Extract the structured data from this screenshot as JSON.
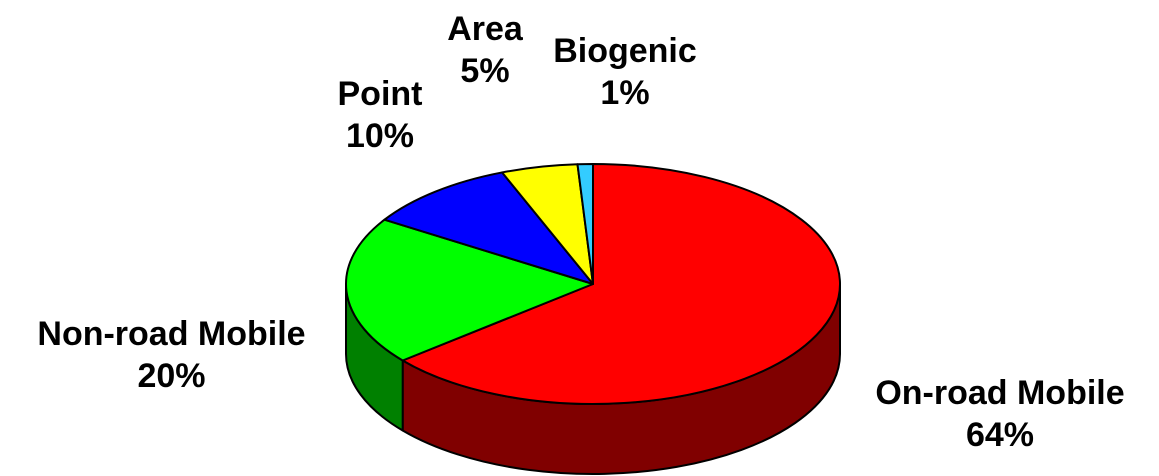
{
  "chart_data": {
    "type": "pie",
    "style": "3d",
    "slices": [
      {
        "label": "On-road Mobile",
        "value": 64,
        "value_label": "64%",
        "color": "#ff0000",
        "side_color": "#800000"
      },
      {
        "label": "Non-road Mobile",
        "value": 20,
        "value_label": "20%",
        "color": "#00ff00",
        "side_color": "#008000"
      },
      {
        "label": "Point",
        "value": 10,
        "value_label": "10%",
        "color": "#0000ff",
        "side_color": "#000080"
      },
      {
        "label": "Area",
        "value": 5,
        "value_label": "5%",
        "color": "#ffff00",
        "side_color": "#808000"
      },
      {
        "label": "Biogenic",
        "value": 1,
        "value_label": "1%",
        "color": "#33ccff",
        "side_color": "#006080"
      }
    ]
  }
}
